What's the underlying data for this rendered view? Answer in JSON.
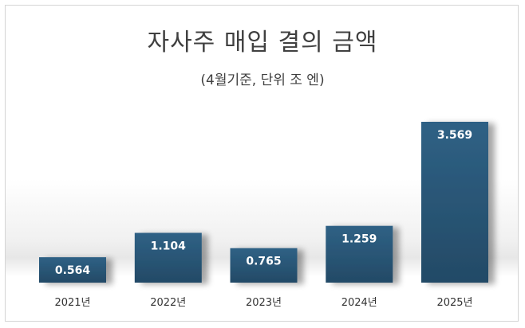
{
  "chart_data": {
    "type": "bar",
    "title": "자사주 매입 결의 금액",
    "subtitle": "(4월기준, 단위 조 엔)",
    "categories": [
      "2021년",
      "2022년",
      "2023년",
      "2024년",
      "2025년"
    ],
    "values": [
      0.564,
      1.104,
      0.765,
      1.259,
      3.569
    ],
    "value_labels": [
      "0.564",
      "1.104",
      "0.765",
      "1.259",
      "3.569"
    ],
    "ylim": [
      0,
      3.6
    ],
    "grid": false,
    "legend": "none",
    "bar_color": "#2b5878"
  }
}
